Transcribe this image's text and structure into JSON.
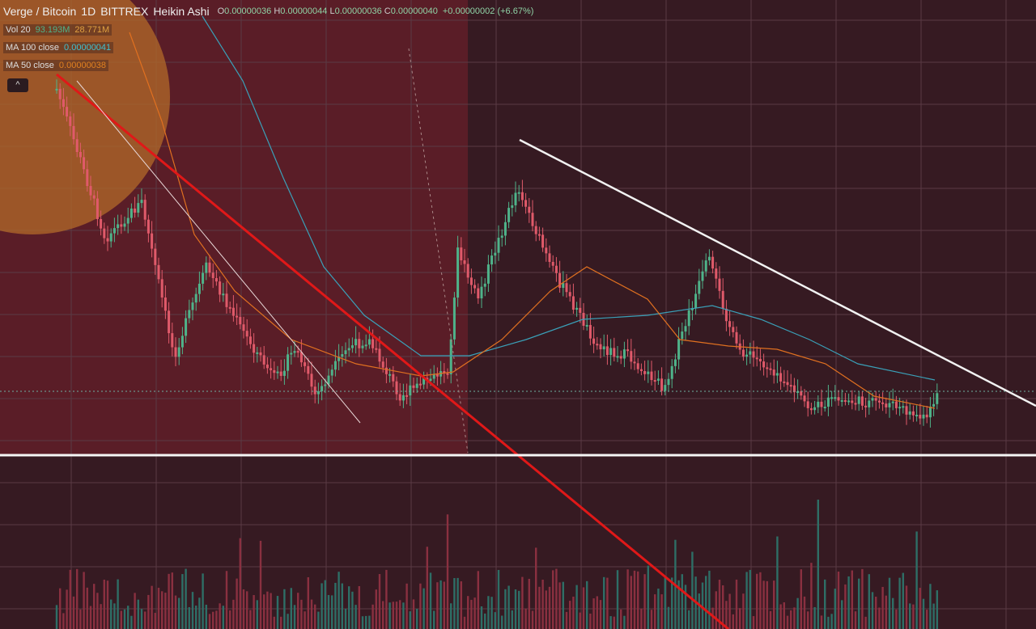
{
  "header": {
    "symbol": "Verge / Bitcoin",
    "interval": "1D",
    "exchange": "BITTREX",
    "chart_style": "Heikin Ashi",
    "ohlc": [
      {
        "label": "O",
        "value": "0.00000036"
      },
      {
        "label": "H",
        "value": "0.00000044"
      },
      {
        "label": "L",
        "value": "0.00000036"
      },
      {
        "label": "C",
        "value": "0.00000040"
      }
    ],
    "change": "+0.00000002 (+6.67%)"
  },
  "indicators": [
    {
      "name": "Vol 20",
      "values": [
        "93.193M",
        "28.771M"
      ]
    },
    {
      "name": "MA 100 close",
      "values": [
        "0.00000041"
      ]
    },
    {
      "name": "MA 50 close",
      "values": [
        "0.00000038"
      ]
    }
  ]
}
